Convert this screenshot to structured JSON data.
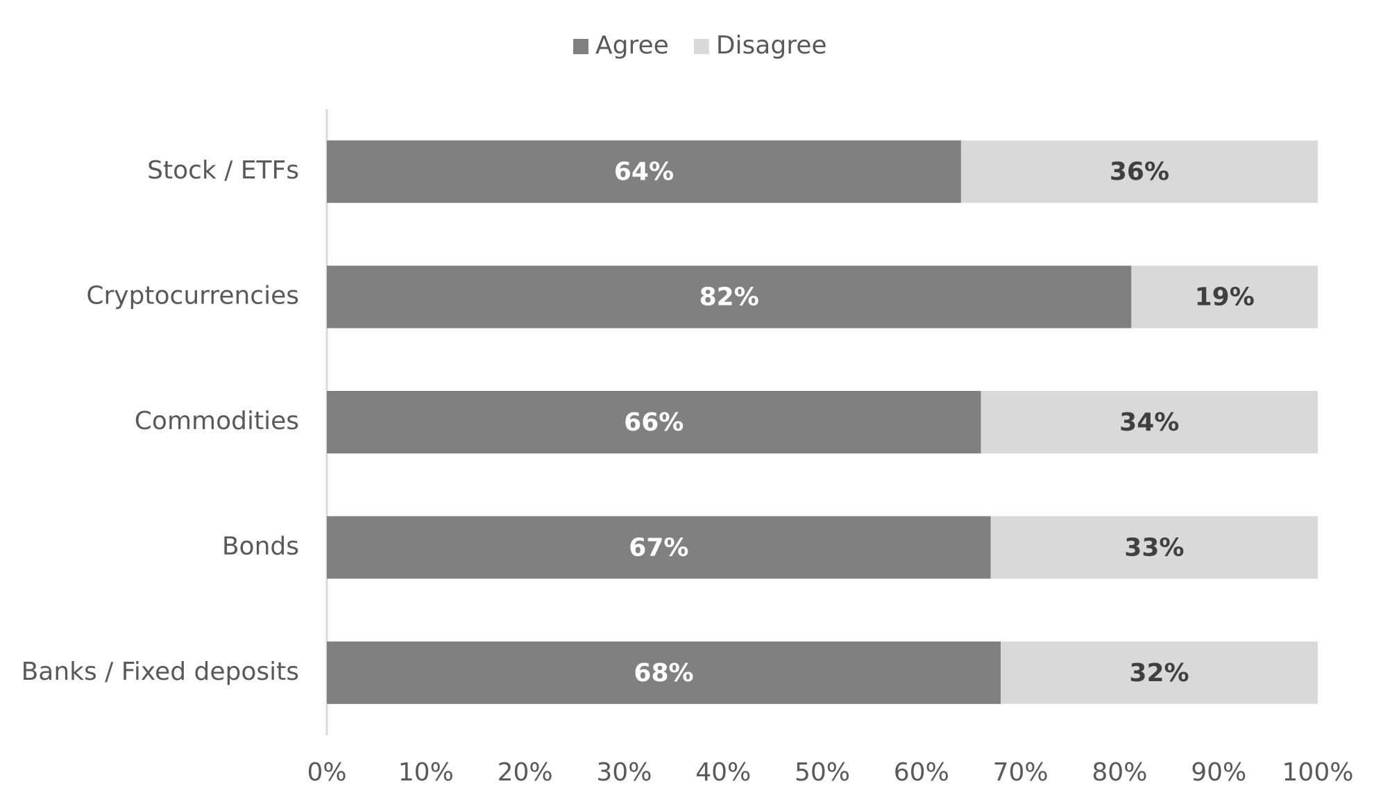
{
  "chart_data": {
    "type": "bar",
    "orientation": "horizontal",
    "stacking": "percent",
    "categories": [
      "Stock / ETFs",
      "Cryptocurrencies",
      "Commodities",
      "Bonds",
      "Banks / Fixed deposits"
    ],
    "series": [
      {
        "name": "Agree",
        "color": "#808080",
        "label_color": "#ffffff",
        "values": [
          64,
          82,
          66,
          67,
          68
        ],
        "value_labels": [
          "64%",
          "82%",
          "66%",
          "67%",
          "68%"
        ]
      },
      {
        "name": "Disagree",
        "color": "#d9d9d9",
        "label_color": "#404040",
        "values": [
          36,
          19,
          34,
          33,
          32
        ],
        "value_labels": [
          "36%",
          "19%",
          "34%",
          "33%",
          "32%"
        ]
      }
    ],
    "xlim": [
      0,
      100
    ],
    "xticks": [
      {
        "value": 0,
        "label": "0%"
      },
      {
        "value": 10,
        "label": "10%"
      },
      {
        "value": 20,
        "label": "20%"
      },
      {
        "value": 30,
        "label": "30%"
      },
      {
        "value": 40,
        "label": "40%"
      },
      {
        "value": 50,
        "label": "50%"
      },
      {
        "value": 60,
        "label": "60%"
      },
      {
        "value": 70,
        "label": "70%"
      },
      {
        "value": 80,
        "label": "80%"
      },
      {
        "value": 90,
        "label": "90%"
      },
      {
        "value": 100,
        "label": "100%"
      }
    ],
    "legend": "top",
    "grid": false
  }
}
